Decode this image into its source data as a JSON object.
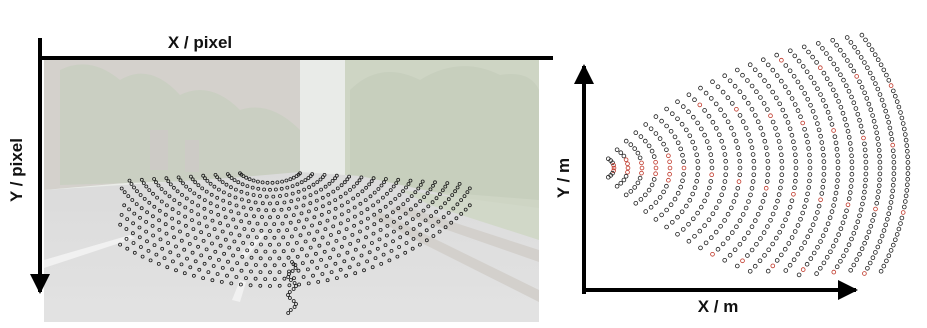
{
  "left_panel": {
    "x_axis_label": "X / pixel",
    "y_axis_label": "Y / pixel",
    "photo_description_colors": {
      "sky": "#e3e6e2",
      "trees": "#bfc8b3",
      "road": "#d2d2d2",
      "building": "#c9c4bd"
    },
    "point_color": "#1a1a1a"
  },
  "right_panel": {
    "x_axis_label": "X / m",
    "y_axis_label": "Y / m",
    "point_color": "#222222",
    "highlight_color": "#c0392b"
  },
  "colors": {
    "axis": "#000000",
    "background": "#ffffff"
  }
}
